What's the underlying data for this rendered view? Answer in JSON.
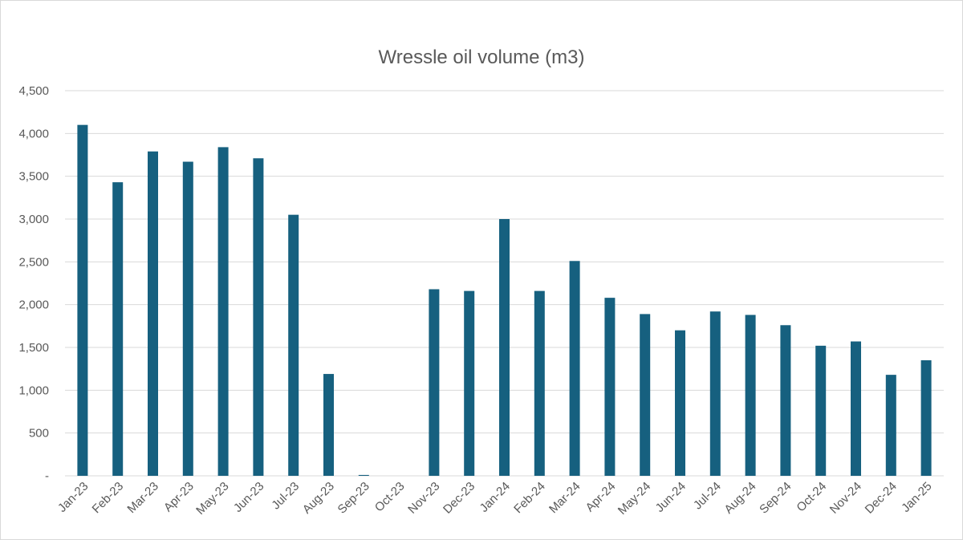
{
  "chart_data": {
    "type": "bar",
    "title": "Wressle oil volume (m3)",
    "xlabel": "",
    "ylabel": "",
    "ylim": [
      0,
      4500
    ],
    "yticks": [
      0,
      500,
      1000,
      1500,
      2000,
      2500,
      3000,
      3500,
      4000,
      4500
    ],
    "ytick_labels": [
      "-",
      "500",
      "1,000",
      "1,500",
      "2,000",
      "2,500",
      "3,000",
      "3,500",
      "4,000",
      "4,500"
    ],
    "grid": true,
    "legend": "none",
    "bar_color": "#16607f",
    "categories": [
      "Jan-23",
      "Feb-23",
      "Mar-23",
      "Apr-23",
      "May-23",
      "Jun-23",
      "Jul-23",
      "Aug-23",
      "Sep-23",
      "Oct-23",
      "Nov-23",
      "Dec-23",
      "Jan-24",
      "Feb-24",
      "Mar-24",
      "Apr-24",
      "May-24",
      "Jun-24",
      "Jul-24",
      "Aug-24",
      "Sep-24",
      "Oct-24",
      "Nov-24",
      "Dec-24",
      "Jan-25"
    ],
    "values": [
      4100,
      3430,
      3790,
      3670,
      3840,
      3710,
      3050,
      1190,
      10,
      0,
      2180,
      2160,
      3000,
      2160,
      2510,
      2080,
      1890,
      1700,
      1920,
      1880,
      1760,
      1520,
      1570,
      1180,
      1350
    ]
  }
}
